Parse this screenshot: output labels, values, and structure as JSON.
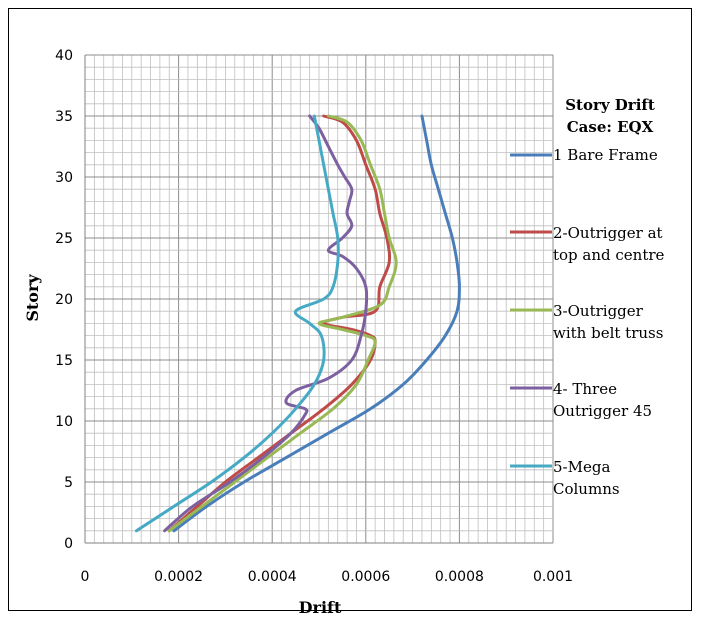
{
  "chart_data": {
    "type": "line",
    "title_lines": [
      "Story Drift",
      "Case: EQX"
    ],
    "xlabel": "Drift",
    "ylabel": "Story",
    "xlim": [
      0,
      0.001
    ],
    "ylim": [
      0,
      40
    ],
    "xticks": [
      0,
      0.0002,
      0.0004,
      0.0006,
      0.0008,
      0.001
    ],
    "xtick_labels": [
      "0",
      "0.0002",
      "0.0004",
      "0.0006",
      "0.0008",
      "0.001"
    ],
    "yticks": [
      0,
      5,
      10,
      15,
      20,
      25,
      30,
      35,
      40
    ],
    "ytick_labels": [
      "0",
      "5",
      "10",
      "15",
      "20",
      "25",
      "30",
      "35",
      "40"
    ],
    "grid": true,
    "legend_position": "right",
    "series": [
      {
        "name": "1 Bare Frame",
        "color": "#4a7ebb",
        "legend_lines": [
          "1 Bare Frame"
        ],
        "points": [
          [
            0.00019,
            1
          ],
          [
            0.00026,
            3
          ],
          [
            0.00034,
            5
          ],
          [
            0.00043,
            7
          ],
          [
            0.00052,
            9
          ],
          [
            0.00061,
            11
          ],
          [
            0.00068,
            13
          ],
          [
            0.00073,
            15
          ],
          [
            0.00077,
            17
          ],
          [
            0.000795,
            19
          ],
          [
            0.0008,
            21
          ],
          [
            0.000795,
            23
          ],
          [
            0.000785,
            25
          ],
          [
            0.00077,
            27
          ],
          [
            0.000755,
            29
          ],
          [
            0.00074,
            31
          ],
          [
            0.00073,
            33
          ],
          [
            0.00072,
            35
          ]
        ]
      },
      {
        "name": "2-Outrigger at top and centre",
        "color": "#be4b48",
        "legend_lines": [
          "2-Outrigger at",
          "top and centre"
        ],
        "points": [
          [
            0.00018,
            1
          ],
          [
            0.00024,
            3
          ],
          [
            0.0003,
            5
          ],
          [
            0.00037,
            7
          ],
          [
            0.00044,
            9
          ],
          [
            0.00051,
            11
          ],
          [
            0.00057,
            13
          ],
          [
            0.00061,
            15
          ],
          [
            0.00062,
            16.5
          ],
          [
            0.00061,
            17
          ],
          [
            0.00057,
            17.5
          ],
          [
            0.00051,
            18
          ],
          [
            0.00055,
            18.5
          ],
          [
            0.00062,
            19
          ],
          [
            0.00063,
            21
          ],
          [
            0.00065,
            23
          ],
          [
            0.000645,
            25
          ],
          [
            0.00063,
            27
          ],
          [
            0.00062,
            29
          ],
          [
            0.0006,
            31
          ],
          [
            0.00058,
            33
          ],
          [
            0.00055,
            34.5
          ],
          [
            0.00051,
            35
          ]
        ]
      },
      {
        "name": "3-Outrigger with belt truss",
        "color": "#98b954",
        "legend_lines": [
          "3-Outrigger",
          "with belt truss"
        ],
        "points": [
          [
            0.00018,
            1
          ],
          [
            0.00025,
            3
          ],
          [
            0.00032,
            5
          ],
          [
            0.00039,
            7
          ],
          [
            0.00046,
            9
          ],
          [
            0.00053,
            11
          ],
          [
            0.00058,
            13
          ],
          [
            0.000605,
            15
          ],
          [
            0.00062,
            16.5
          ],
          [
            0.0006,
            17
          ],
          [
            0.00055,
            17.5
          ],
          [
            0.0005,
            18
          ],
          [
            0.00055,
            18.5
          ],
          [
            0.00063,
            19.5
          ],
          [
            0.00065,
            21
          ],
          [
            0.000665,
            23
          ],
          [
            0.00065,
            25
          ],
          [
            0.00064,
            27
          ],
          [
            0.00063,
            29
          ],
          [
            0.00061,
            31
          ],
          [
            0.00059,
            33
          ],
          [
            0.00056,
            34.5
          ],
          [
            0.00052,
            35
          ]
        ]
      },
      {
        "name": "4- Three Outrigger 45",
        "color": "#7d60a0",
        "legend_lines": [
          "4- Three",
          "Outrigger 45"
        ],
        "points": [
          [
            0.00017,
            1
          ],
          [
            0.00023,
            3
          ],
          [
            0.00031,
            5
          ],
          [
            0.00038,
            7
          ],
          [
            0.00044,
            9
          ],
          [
            0.00047,
            10.5
          ],
          [
            0.00047,
            11
          ],
          [
            0.00043,
            11.5
          ],
          [
            0.00045,
            12.5
          ],
          [
            0.00052,
            13.5
          ],
          [
            0.00057,
            15
          ],
          [
            0.00059,
            17
          ],
          [
            0.0006,
            19
          ],
          [
            0.0006,
            21
          ],
          [
            0.00058,
            22.5
          ],
          [
            0.00055,
            23.5
          ],
          [
            0.00052,
            24
          ],
          [
            0.00055,
            25
          ],
          [
            0.00057,
            26
          ],
          [
            0.00056,
            27
          ],
          [
            0.000565,
            28
          ],
          [
            0.00057,
            29
          ],
          [
            0.000555,
            30
          ],
          [
            0.00054,
            31
          ],
          [
            0.00052,
            32.5
          ],
          [
            0.0005,
            34
          ],
          [
            0.00048,
            35
          ]
        ]
      },
      {
        "name": "5-Mega Columns",
        "color": "#46aac5",
        "legend_lines": [
          "5-Mega",
          "Columns"
        ],
        "points": [
          [
            0.00011,
            1
          ],
          [
            0.00019,
            3
          ],
          [
            0.00027,
            5
          ],
          [
            0.00034,
            7
          ],
          [
            0.0004,
            9
          ],
          [
            0.00045,
            11
          ],
          [
            0.00049,
            13
          ],
          [
            0.00051,
            15
          ],
          [
            0.000505,
            17
          ],
          [
            0.00048,
            18
          ],
          [
            0.00045,
            19
          ],
          [
            0.00051,
            20
          ],
          [
            0.00053,
            21
          ],
          [
            0.00054,
            23
          ],
          [
            0.00054,
            25
          ],
          [
            0.00053,
            27
          ],
          [
            0.00052,
            29
          ],
          [
            0.00051,
            31
          ],
          [
            0.0005,
            33
          ],
          [
            0.00049,
            35
          ]
        ]
      }
    ]
  }
}
